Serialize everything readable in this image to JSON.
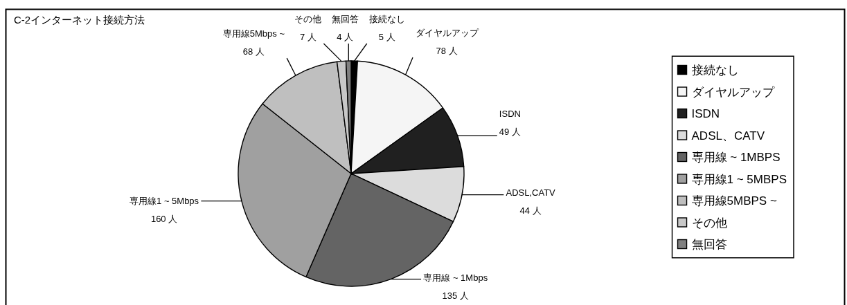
{
  "chart_data": {
    "type": "pie",
    "title": "C-2インターネット接続方法",
    "categories": [
      "接続なし",
      "ダイヤルアップ",
      "ISDN",
      "ADSL、CATV",
      "専用線 ~ 1MBPS",
      "専用線1 ~ 5MBPS",
      "専用線5MBPS ~",
      "その他",
      "無回答"
    ],
    "values": [
      5,
      78,
      49,
      44,
      135,
      160,
      68,
      7,
      4
    ],
    "colors": [
      "#000000",
      "#f5f5f5",
      "#202020",
      "#dcdcdc",
      "#646464",
      "#a0a0a0",
      "#bfbfbf",
      "#c8c8c8",
      "#808080"
    ],
    "value_labels": [
      "接続なし\n5 人",
      "ダイヤルアップ\n78 人",
      "ISDN\n49 人",
      "ADSL,CATV\n44 人",
      "専用線 ~ 1Mbps\n135 人",
      "専用線1 ~ 5Mbps\n160 人",
      "専用線5Mbps ~\n68 人",
      "その他\n7 人",
      "無回答\n4 人"
    ],
    "legend": "right"
  }
}
